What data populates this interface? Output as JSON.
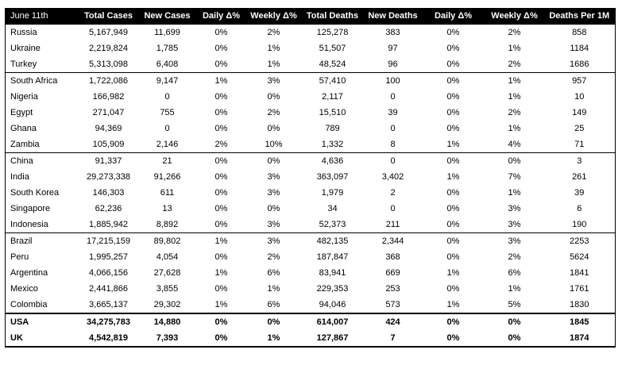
{
  "headers": [
    "June 11th",
    "Total Cases",
    "New Cases",
    "Daily Δ%",
    "Weekly Δ%",
    "Total Deaths",
    "New Deaths",
    "Daily Δ%",
    "Weekly Δ%",
    "Deaths Per 1M"
  ],
  "rows": [
    {
      "country": "Russia",
      "total_cases": "5,167,949",
      "new_cases": "11,699",
      "daily_cases_pct": "0%",
      "weekly_cases_pct": "2%",
      "total_deaths": "125,278",
      "new_deaths": "383",
      "daily_deaths_pct": "0%",
      "weekly_deaths_pct": "2%",
      "deaths_per_1m": "858"
    },
    {
      "country": "Ukraine",
      "total_cases": "2,219,824",
      "new_cases": "1,785",
      "daily_cases_pct": "0%",
      "weekly_cases_pct": "1%",
      "total_deaths": "51,507",
      "new_deaths": "97",
      "daily_deaths_pct": "0%",
      "weekly_deaths_pct": "1%",
      "deaths_per_1m": "1184"
    },
    {
      "country": "Turkey",
      "total_cases": "5,313,098",
      "new_cases": "6,408",
      "daily_cases_pct": "0%",
      "weekly_cases_pct": "1%",
      "total_deaths": "48,524",
      "new_deaths": "96",
      "daily_deaths_pct": "0%",
      "weekly_deaths_pct": "2%",
      "deaths_per_1m": "1686"
    },
    {
      "country": "South Africa",
      "total_cases": "1,722,086",
      "new_cases": "9,147",
      "daily_cases_pct": "1%",
      "weekly_cases_pct": "3%",
      "total_deaths": "57,410",
      "new_deaths": "100",
      "daily_deaths_pct": "0%",
      "weekly_deaths_pct": "1%",
      "deaths_per_1m": "957"
    },
    {
      "country": "Nigeria",
      "total_cases": "166,982",
      "new_cases": "0",
      "daily_cases_pct": "0%",
      "weekly_cases_pct": "0%",
      "total_deaths": "2,117",
      "new_deaths": "0",
      "daily_deaths_pct": "0%",
      "weekly_deaths_pct": "1%",
      "deaths_per_1m": "10"
    },
    {
      "country": "Egypt",
      "total_cases": "271,047",
      "new_cases": "755",
      "daily_cases_pct": "0%",
      "weekly_cases_pct": "2%",
      "total_deaths": "15,510",
      "new_deaths": "39",
      "daily_deaths_pct": "0%",
      "weekly_deaths_pct": "2%",
      "deaths_per_1m": "149"
    },
    {
      "country": "Ghana",
      "total_cases": "94,369",
      "new_cases": "0",
      "daily_cases_pct": "0%",
      "weekly_cases_pct": "0%",
      "total_deaths": "789",
      "new_deaths": "0",
      "daily_deaths_pct": "0%",
      "weekly_deaths_pct": "1%",
      "deaths_per_1m": "25"
    },
    {
      "country": "Zambia",
      "total_cases": "105,909",
      "new_cases": "2,146",
      "daily_cases_pct": "2%",
      "weekly_cases_pct": "10%",
      "total_deaths": "1,332",
      "new_deaths": "8",
      "daily_deaths_pct": "1%",
      "weekly_deaths_pct": "4%",
      "deaths_per_1m": "71"
    },
    {
      "country": "China",
      "total_cases": "91,337",
      "new_cases": "21",
      "daily_cases_pct": "0%",
      "weekly_cases_pct": "0%",
      "total_deaths": "4,636",
      "new_deaths": "0",
      "daily_deaths_pct": "0%",
      "weekly_deaths_pct": "0%",
      "deaths_per_1m": "3"
    },
    {
      "country": "India",
      "total_cases": "29,273,338",
      "new_cases": "91,266",
      "daily_cases_pct": "0%",
      "weekly_cases_pct": "3%",
      "total_deaths": "363,097",
      "new_deaths": "3,402",
      "daily_deaths_pct": "1%",
      "weekly_deaths_pct": "7%",
      "deaths_per_1m": "261"
    },
    {
      "country": "South Korea",
      "total_cases": "146,303",
      "new_cases": "611",
      "daily_cases_pct": "0%",
      "weekly_cases_pct": "3%",
      "total_deaths": "1,979",
      "new_deaths": "2",
      "daily_deaths_pct": "0%",
      "weekly_deaths_pct": "1%",
      "deaths_per_1m": "39"
    },
    {
      "country": "Singapore",
      "total_cases": "62,236",
      "new_cases": "13",
      "daily_cases_pct": "0%",
      "weekly_cases_pct": "0%",
      "total_deaths": "34",
      "new_deaths": "0",
      "daily_deaths_pct": "0%",
      "weekly_deaths_pct": "3%",
      "deaths_per_1m": "6"
    },
    {
      "country": "Indonesia",
      "total_cases": "1,885,942",
      "new_cases": "8,892",
      "daily_cases_pct": "0%",
      "weekly_cases_pct": "3%",
      "total_deaths": "52,373",
      "new_deaths": "211",
      "daily_deaths_pct": "0%",
      "weekly_deaths_pct": "3%",
      "deaths_per_1m": "190"
    },
    {
      "country": "Brazil",
      "total_cases": "17,215,159",
      "new_cases": "89,802",
      "daily_cases_pct": "1%",
      "weekly_cases_pct": "3%",
      "total_deaths": "482,135",
      "new_deaths": "2,344",
      "daily_deaths_pct": "0%",
      "weekly_deaths_pct": "3%",
      "deaths_per_1m": "2253"
    },
    {
      "country": "Peru",
      "total_cases": "1,995,257",
      "new_cases": "4,054",
      "daily_cases_pct": "0%",
      "weekly_cases_pct": "2%",
      "total_deaths": "187,847",
      "new_deaths": "368",
      "daily_deaths_pct": "0%",
      "weekly_deaths_pct": "2%",
      "deaths_per_1m": "5624"
    },
    {
      "country": "Argentina",
      "total_cases": "4,066,156",
      "new_cases": "27,628",
      "daily_cases_pct": "1%",
      "weekly_cases_pct": "6%",
      "total_deaths": "83,941",
      "new_deaths": "669",
      "daily_deaths_pct": "1%",
      "weekly_deaths_pct": "6%",
      "deaths_per_1m": "1841"
    },
    {
      "country": "Mexico",
      "total_cases": "2,441,866",
      "new_cases": "3,855",
      "daily_cases_pct": "0%",
      "weekly_cases_pct": "1%",
      "total_deaths": "229,353",
      "new_deaths": "253",
      "daily_deaths_pct": "0%",
      "weekly_deaths_pct": "1%",
      "deaths_per_1m": "1761"
    },
    {
      "country": "Colombia",
      "total_cases": "3,665,137",
      "new_cases": "29,302",
      "daily_cases_pct": "1%",
      "weekly_cases_pct": "6%",
      "total_deaths": "94,046",
      "new_deaths": "573",
      "daily_deaths_pct": "1%",
      "weekly_deaths_pct": "5%",
      "deaths_per_1m": "1830"
    },
    {
      "country": "USA",
      "total_cases": "34,275,783",
      "new_cases": "14,880",
      "daily_cases_pct": "0%",
      "weekly_cases_pct": "0%",
      "total_deaths": "614,007",
      "new_deaths": "424",
      "daily_deaths_pct": "0%",
      "weekly_deaths_pct": "0%",
      "deaths_per_1m": "1845"
    },
    {
      "country": "UK",
      "total_cases": "4,542,819",
      "new_cases": "7,393",
      "daily_cases_pct": "0%",
      "weekly_cases_pct": "1%",
      "total_deaths": "127,867",
      "new_deaths": "7",
      "daily_deaths_pct": "0%",
      "weekly_deaths_pct": "0%",
      "deaths_per_1m": "1874"
    }
  ]
}
